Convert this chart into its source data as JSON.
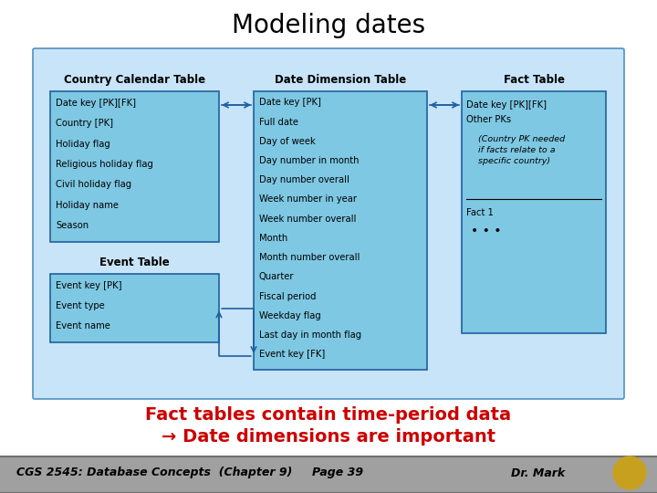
{
  "title": "Modeling dates",
  "title_fontsize": 20,
  "title_color": "#000000",
  "bg_color": "#ffffff",
  "diagram_bg": "#c8e4f8",
  "box_fill": "#7ec8e3",
  "box_edge": "#2060a0",
  "footer_bg": "#b0b0b0",
  "footer_text": "CGS 2545: Database Concepts  (Chapter 9)          Page 39          Dr. Mark",
  "bullet_text1": "Fact tables contain time-period data",
  "bullet_text2": "→ Date dimensions are important",
  "bullet_color": "#cc0000",
  "country_table_title": "Country Calendar Table",
  "country_table_fields": [
    "Date key [PK][FK]",
    "Country [PK]",
    "Holiday flag",
    "Religious holiday flag",
    "Civil holiday flag",
    "Holiday name",
    "Season"
  ],
  "date_dim_title": "Date Dimension Table",
  "date_dim_fields": [
    "Date key [PK]",
    "Full date",
    "Day of week",
    "Day number in month",
    "Day number overall",
    "Week number in year",
    "Week number overall",
    "Month",
    "Month number overall",
    "Quarter",
    "Fiscal period",
    "Weekday flag",
    "Last day in month flag",
    "Event key [FK]"
  ],
  "fact_title": "Fact Table",
  "fact_fields_top": [
    "Date key [PK][FK]",
    "Other PKs"
  ],
  "fact_note": "(Country PK needed\nif facts relate to a\nspecific country)",
  "fact_fields_bot": [
    "Fact 1",
    "..."
  ],
  "event_title": "Event Table",
  "event_fields": [
    "Event key [PK]",
    "Event type",
    "Event name"
  ]
}
